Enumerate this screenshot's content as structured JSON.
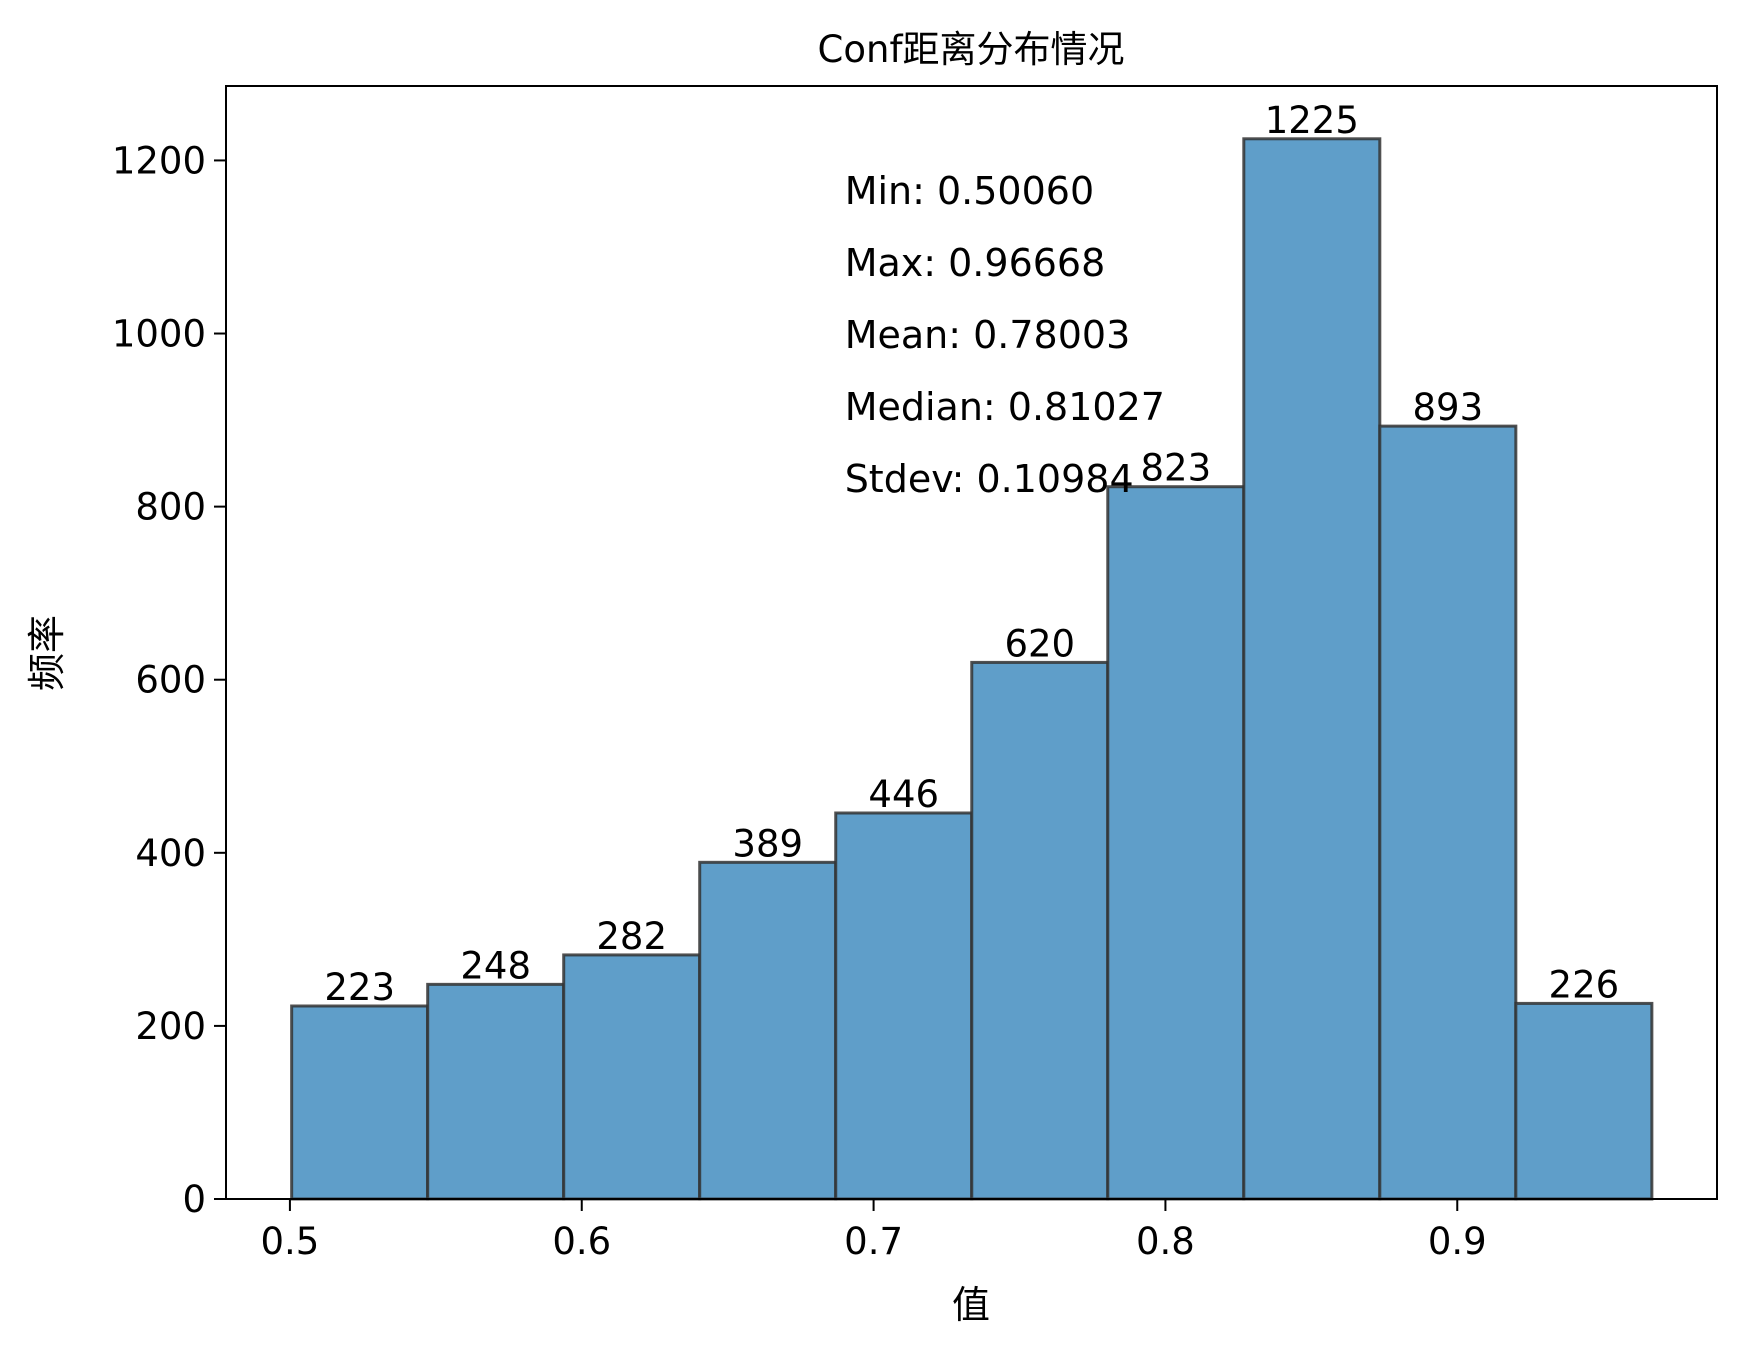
{
  "chart_data": {
    "type": "bar",
    "title": "Conf距离分布情况",
    "xlabel": "值",
    "ylabel": "频率",
    "bin_edges": [
      0.5006,
      0.54721,
      0.59382,
      0.64042,
      0.68703,
      0.73364,
      0.78025,
      0.82686,
      0.87346,
      0.92007,
      0.96668
    ],
    "values": [
      223,
      248,
      282,
      389,
      446,
      620,
      823,
      1225,
      893,
      226
    ],
    "xlim": [
      0.4781,
      0.989
    ],
    "ylim": [
      0,
      1286
    ],
    "x_ticks": [
      0.5,
      0.6,
      0.7,
      0.8,
      0.9
    ],
    "x_tick_labels": [
      "0.5",
      "0.6",
      "0.7",
      "0.8",
      "0.9"
    ],
    "y_ticks": [
      0,
      200,
      400,
      600,
      800,
      1000,
      1200
    ],
    "y_tick_labels": [
      "0",
      "200",
      "400",
      "600",
      "800",
      "1000",
      "1200"
    ],
    "bar_color": "#5f9ec9",
    "bar_edge_color": "#333333",
    "grid": false,
    "stats": [
      "Min: 0.50060",
      "Max: 0.96668",
      "Mean: 0.78003",
      "Median: 0.81027",
      "Stdev: 0.10984"
    ]
  }
}
